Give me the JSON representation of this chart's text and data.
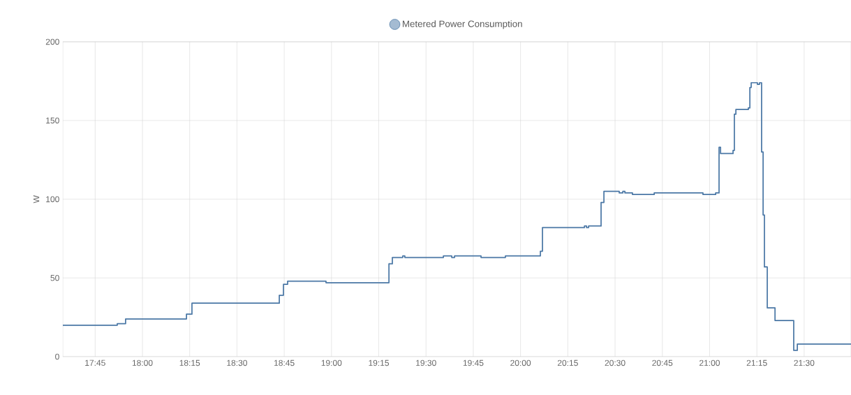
{
  "chart_data": {
    "type": "step",
    "ylabel": "W",
    "legend": "top",
    "grid": true,
    "xlim": [
      17.579,
      21.748
    ],
    "ylim": [
      0,
      200
    ],
    "yticks": [
      0,
      50,
      100,
      150,
      200
    ],
    "xticks": [
      {
        "value": 17.75,
        "label": "17:45"
      },
      {
        "value": 18,
        "label": "18:00"
      },
      {
        "value": 18.25,
        "label": "18:15"
      },
      {
        "value": 18.5,
        "label": "18:30"
      },
      {
        "value": 18.75,
        "label": "18:45"
      },
      {
        "value": 19,
        "label": "19:00"
      },
      {
        "value": 19.25,
        "label": "19:15"
      },
      {
        "value": 19.5,
        "label": "19:30"
      },
      {
        "value": 19.75,
        "label": "19:45"
      },
      {
        "value": 20,
        "label": "20:00"
      },
      {
        "value": 20.25,
        "label": "20:15"
      },
      {
        "value": 20.5,
        "label": "20:30"
      },
      {
        "value": 20.75,
        "label": "20:45"
      },
      {
        "value": 21,
        "label": "21:00"
      },
      {
        "value": 21.25,
        "label": "21:15"
      },
      {
        "value": 21.5,
        "label": "21:30"
      }
    ],
    "series": [
      {
        "name": "Metered Power Consumption",
        "color": "#4a77a5",
        "x": [
          17.579,
          17.867,
          17.911,
          18.233,
          18.262,
          18.724,
          18.746,
          18.768,
          18.971,
          19.304,
          19.322,
          19.377,
          19.388,
          19.592,
          19.636,
          19.651,
          19.791,
          19.92,
          20.105,
          20.116,
          20.338,
          20.349,
          20.36,
          20.426,
          20.441,
          20.522,
          20.541,
          20.552,
          20.592,
          20.707,
          20.965,
          21.032,
          21.05,
          21.058,
          21.124,
          21.131,
          21.139,
          21.205,
          21.213,
          21.22,
          21.253,
          21.264,
          21.275,
          21.283,
          21.29,
          21.305,
          21.346,
          21.445,
          21.464,
          21.748
        ],
        "values": [
          20,
          21,
          24,
          27,
          34,
          39,
          46,
          48,
          47,
          59,
          63,
          64,
          63,
          64,
          63,
          64,
          63,
          64,
          67,
          82,
          83,
          82,
          83,
          98,
          105,
          104,
          105,
          104,
          103,
          104,
          103,
          104,
          133,
          129,
          131,
          154,
          157,
          158,
          171,
          174,
          173,
          174,
          130,
          90,
          57,
          31,
          23,
          4,
          8,
          8
        ]
      }
    ]
  }
}
